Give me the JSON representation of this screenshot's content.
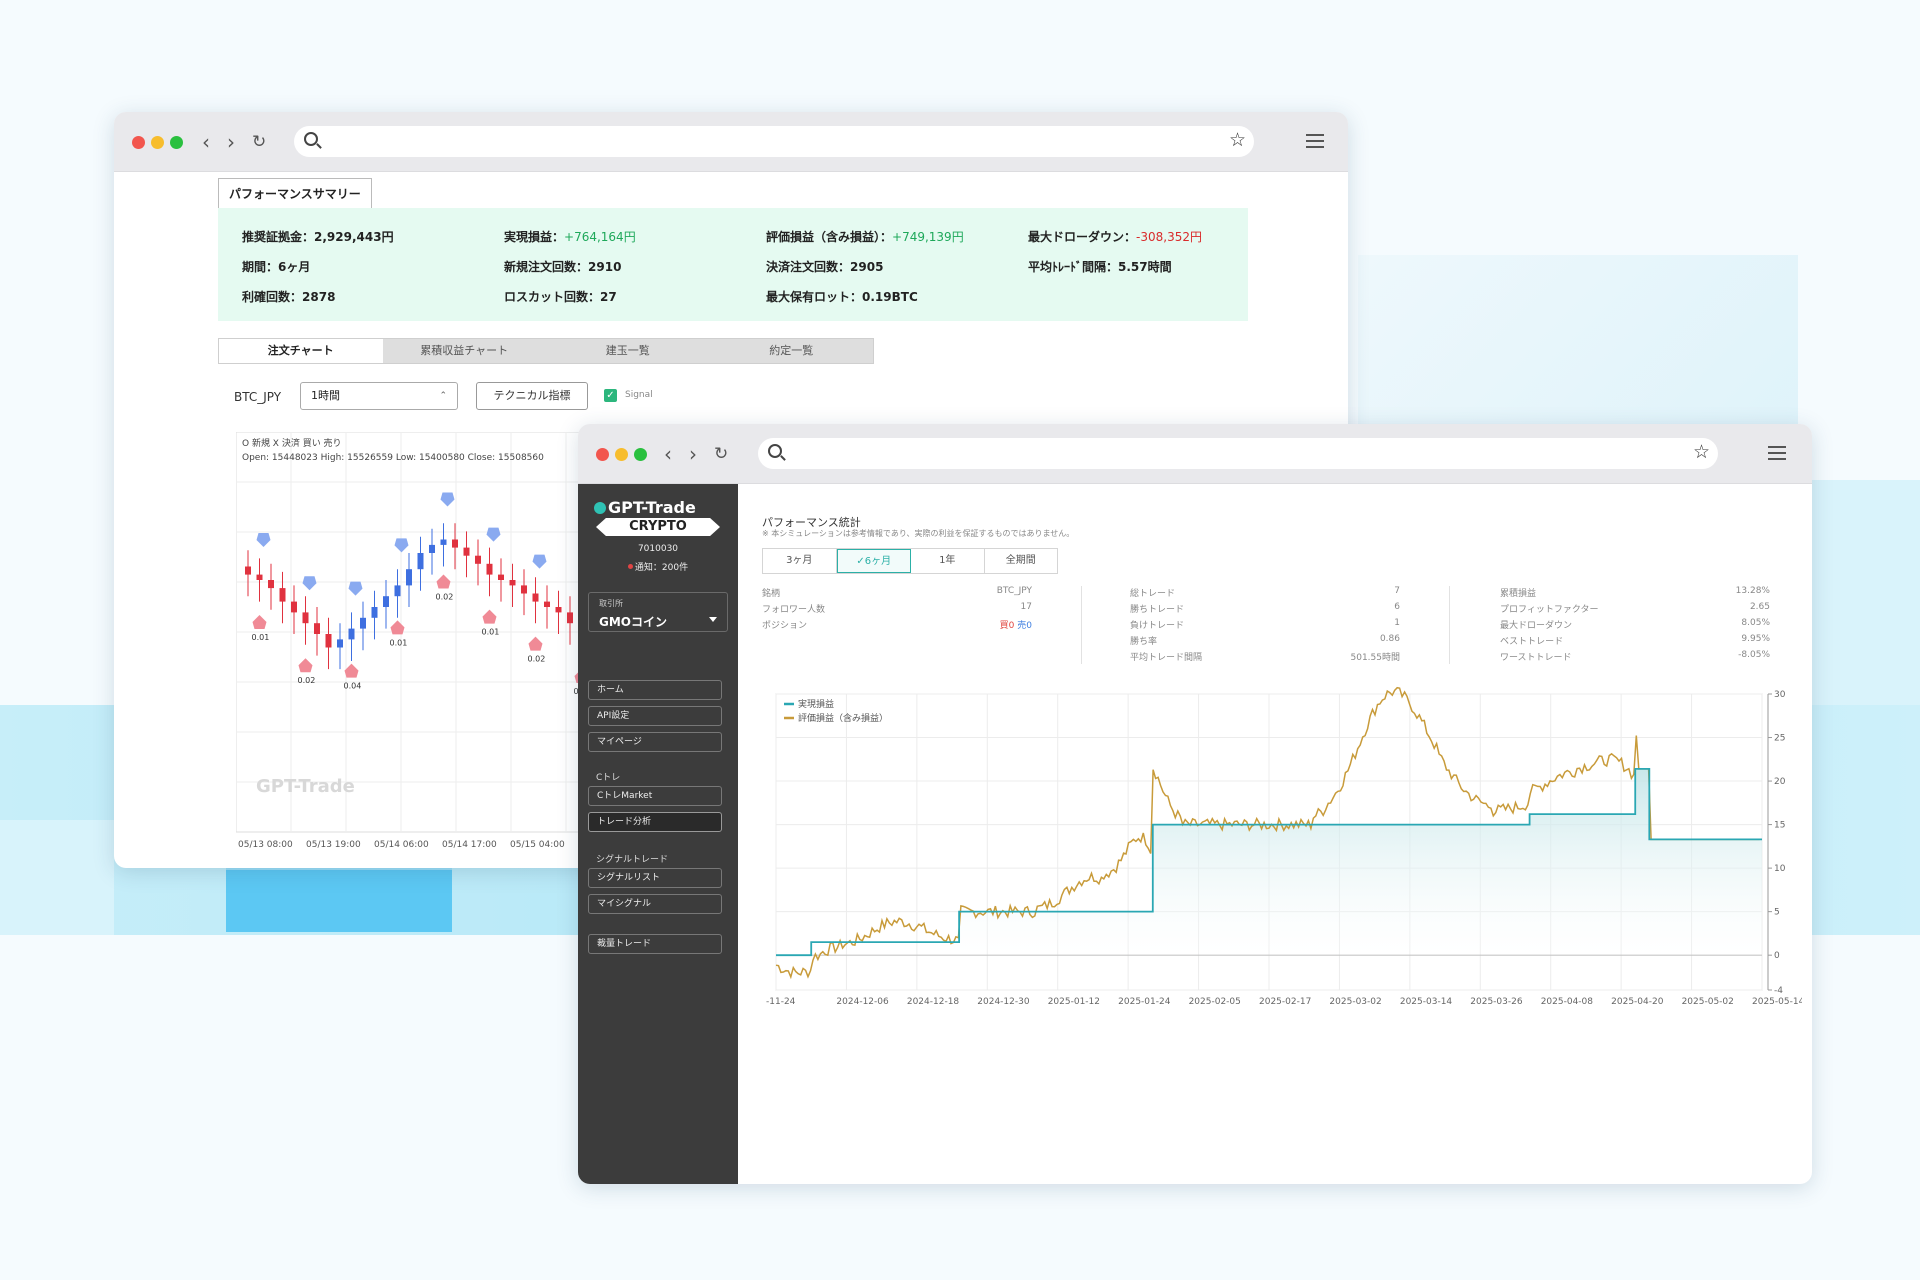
{
  "back_window": {
    "summary_title": "パフォーマンスサマリー",
    "summary": [
      {
        "label": "推奨証拠金：",
        "value": "2,929,443円",
        "tone": "plain"
      },
      {
        "label": "実現損益：",
        "value": "+764,164円",
        "tone": "green"
      },
      {
        "label": "評価損益（含み損益）：",
        "value": "+749,139円",
        "tone": "green"
      },
      {
        "label": "最大ドローダウン：",
        "value": "-308,352円",
        "tone": "red"
      },
      {
        "label": "期間：",
        "value": "6ヶ月",
        "tone": "plain"
      },
      {
        "label": "新規注文回数：",
        "value": "2910",
        "tone": "plain"
      },
      {
        "label": "決済注文回数：",
        "value": "2905",
        "tone": "plain"
      },
      {
        "label": "平均ﾄﾚｰﾄﾞ間隔：",
        "value": "5.57時間",
        "tone": "plain"
      },
      {
        "label": "利確回数：",
        "value": "2878",
        "tone": "plain"
      },
      {
        "label": "ロスカット回数：",
        "value": "27",
        "tone": "plain"
      },
      {
        "label": "最大保有ロット：",
        "value": "0.19BTC",
        "tone": "plain"
      }
    ],
    "tabs": [
      "注文チャート",
      "累積収益チャート",
      "建玉一覧",
      "約定一覧"
    ],
    "active_tab": 0,
    "symbol": "BTC_JPY",
    "timeframe": "1時間",
    "tech_button": "テクニカル指標",
    "signal_label": "Signal",
    "chart_data": {
      "type": "candlestick",
      "legend": [
        "O 新規",
        "X 決済",
        "買い",
        "売り"
      ],
      "ohlc_line": "Open: 15448023  High: 15526559  Low: 15400580  Close: 15508560",
      "x_ticks": [
        "05/13 08:00",
        "05/13 19:00",
        "05/14 06:00",
        "05/14 17:00",
        "05/15 04:00"
      ],
      "watermark": "GPT-Trade",
      "closes": [
        62,
        60,
        57,
        52,
        48,
        44,
        40,
        35,
        38,
        42,
        46,
        50,
        54,
        58,
        64,
        70,
        73,
        75,
        72,
        69,
        66,
        62,
        60,
        58,
        55,
        52,
        50,
        48,
        44,
        40,
        36,
        30,
        25,
        22,
        20,
        18,
        16,
        14,
        12,
        10
      ],
      "marker_labels": [
        "0.01",
        "0.02",
        "0.04",
        "0.01",
        "0.02",
        "0.01",
        "0.02",
        "0.01",
        "0.02",
        "0.01"
      ]
    }
  },
  "front_window": {
    "brand": "GPT-Trade",
    "brand_sub": "CRYPTO",
    "account_id": "7010030",
    "notifications": "通知：200件",
    "exchange_label": "取引所",
    "exchange": "GMOコイン",
    "nav": [
      {
        "label": "ホーム",
        "active": false
      },
      {
        "label": "API設定",
        "active": false
      },
      {
        "label": "マイページ",
        "active": false
      }
    ],
    "section_c": "Cトレ",
    "nav_c": [
      {
        "label": "CトレMarket",
        "active": false
      },
      {
        "label": "トレード分析",
        "active": true
      }
    ],
    "section_signal": "シグナルトレード",
    "nav_signal": [
      {
        "label": "シグナルリスト",
        "active": false
      },
      {
        "label": "マイシグナル",
        "active": false
      }
    ],
    "nav_bottom": "裁量トレード",
    "title": "パフォーマンス統計",
    "note": "※ 本シミュレーションは参考情報であり、実際の利益を保証するものではありません。",
    "period_tabs": [
      "3ヶ月",
      "✓6ヶ月",
      "1年",
      "全期間"
    ],
    "active_period": 1,
    "stats_col1": [
      {
        "k": "銘柄",
        "v": "BTC_JPY"
      },
      {
        "k": "フォロワー人数",
        "v": "17"
      }
    ],
    "position": {
      "k": "ポジション",
      "buy": "買0",
      "sell": "売0"
    },
    "stats_col2": [
      {
        "k": "総トレード",
        "v": "7"
      },
      {
        "k": "勝ちトレード",
        "v": "6"
      },
      {
        "k": "負けトレード",
        "v": "1"
      },
      {
        "k": "勝ち率",
        "v": "0.86"
      },
      {
        "k": "平均トレード間隔",
        "v": "501.55時間"
      }
    ],
    "stats_col3": [
      {
        "k": "累積損益",
        "v": "13.28%"
      },
      {
        "k": "プロフィットファクター",
        "v": "2.65"
      },
      {
        "k": "最大ドローダウン",
        "v": "8.05%"
      },
      {
        "k": "ベストトレード",
        "v": "9.95%"
      },
      {
        "k": "ワーストトレード",
        "v": "-8.05%"
      }
    ],
    "chart_data": {
      "type": "line",
      "x_ticks": [
        "-11-24",
        "2024-12-06",
        "2024-12-18",
        "2024-12-30",
        "2025-01-12",
        "2025-01-24",
        "2025-02-05",
        "2025-02-17",
        "2025-03-02",
        "2025-03-14",
        "2025-03-26",
        "2025-04-08",
        "2025-04-20",
        "2025-05-02",
        "2025-05-14"
      ],
      "y_ticks": [
        30,
        25,
        20,
        15,
        10,
        5,
        0,
        -4
      ],
      "ylim": [
        -4,
        30
      ],
      "series": [
        {
          "name": "実現損益",
          "color": "#2aa7b3",
          "step_x": [
            0,
            0.5,
            1.3,
            2.6,
            4.8,
            5.35,
            8.0,
            9.3,
            10.7,
            12.2,
            12.4,
            14.0
          ],
          "step_y": [
            0,
            1.5,
            1.5,
            5.0,
            5.0,
            15.0,
            15.0,
            15.0,
            16.2,
            21.4,
            13.3,
            13.3
          ],
          "final_x": 14.0
        },
        {
          "name": "評価損益（含み損益）",
          "color": "#c89b3a"
        }
      ]
    }
  }
}
